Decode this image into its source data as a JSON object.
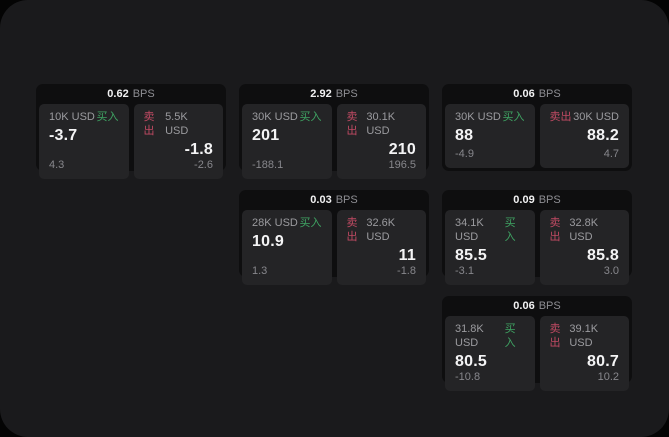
{
  "theme": {
    "outer_background": "#040404",
    "page_background": "#1a1a1c",
    "card_background": "#0e0e0f",
    "panel_background": "#242426",
    "buy_color": "#3fa463",
    "sell_color": "#c04a63",
    "primary_text": "#f4f4f5",
    "muted_text": "#9b9b9f"
  },
  "cards": [
    {
      "bps": "0.62",
      "bps_unit": "BPS",
      "buy": {
        "amount": "10K USD",
        "side_label": "买入",
        "value": "-3.7",
        "sub": "4.3"
      },
      "sell": {
        "amount": "5.5K USD",
        "side_label": "卖出",
        "value": "-1.8",
        "sub": "-2.6"
      }
    },
    {
      "bps": "2.92",
      "bps_unit": "BPS",
      "buy": {
        "amount": "30K USD",
        "side_label": "买入",
        "value": "201",
        "sub": "-188.1"
      },
      "sell": {
        "amount": "30.1K USD",
        "side_label": "卖出",
        "value": "210",
        "sub": "196.5"
      }
    },
    {
      "bps": "0.06",
      "bps_unit": "BPS",
      "buy": {
        "amount": "30K USD",
        "side_label": "买入",
        "value": "88",
        "sub": "-4.9"
      },
      "sell": {
        "amount": "30K USD",
        "side_label": "卖出",
        "value": "88.2",
        "sub": "4.7"
      }
    },
    {
      "bps": "0.03",
      "bps_unit": "BPS",
      "buy": {
        "amount": "28K USD",
        "side_label": "买入",
        "value": "10.9",
        "sub": "1.3"
      },
      "sell": {
        "amount": "32.6K USD",
        "side_label": "卖出",
        "value": "11",
        "sub": "-1.8"
      }
    },
    {
      "bps": "0.09",
      "bps_unit": "BPS",
      "buy": {
        "amount": "34.1K USD",
        "side_label": "买入",
        "value": "85.5",
        "sub": "-3.1"
      },
      "sell": {
        "amount": "32.8K USD",
        "side_label": "卖出",
        "value": "85.8",
        "sub": "3.0"
      }
    },
    {
      "bps": "0.06",
      "bps_unit": "BPS",
      "buy": {
        "amount": "31.8K USD",
        "side_label": "买入",
        "value": "80.5",
        "sub": "-10.8"
      },
      "sell": {
        "amount": "39.1K USD",
        "side_label": "卖出",
        "value": "80.7",
        "sub": "10.2"
      }
    }
  ]
}
